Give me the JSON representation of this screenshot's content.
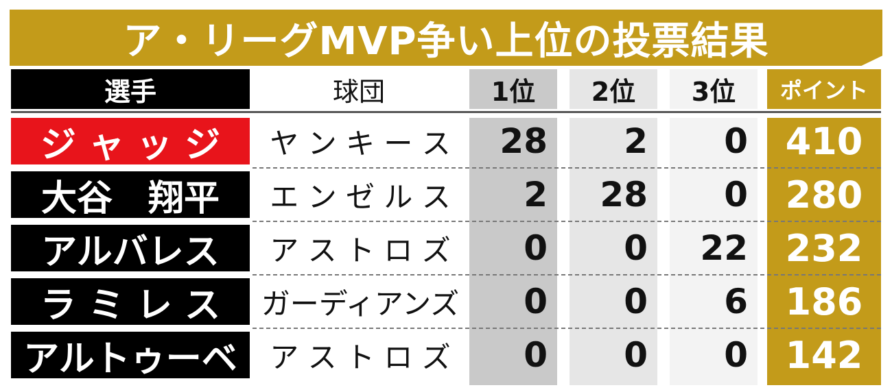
{
  "title": "ア・リーグMVP争い上位の投票結果",
  "colors": {
    "gold": "#c39b1a",
    "highlight": "#e8141b",
    "black": "#000000"
  },
  "chart_data": {
    "type": "table",
    "title": "ア・リーグMVP争い上位の投票結果",
    "columns": [
      "選手",
      "球団",
      "1位",
      "2位",
      "3位",
      "ポイント"
    ],
    "rows": [
      {
        "player": "ジ ャ ッ ジ",
        "team": "ヤ ン キ ー ス",
        "first": 28,
        "second": 2,
        "third": 0,
        "points": 410,
        "highlight": true
      },
      {
        "player": "大谷　翔平",
        "team": "エ ン ゼ ル ス",
        "first": 2,
        "second": 28,
        "third": 0,
        "points": 280,
        "highlight": false
      },
      {
        "player": "アルバレス",
        "team": "ア ス ト ロ ズ",
        "first": 0,
        "second": 0,
        "third": 22,
        "points": 232,
        "highlight": false
      },
      {
        "player": "ラ ミ レ ス",
        "team": "ガーディアンズ",
        "first": 0,
        "second": 0,
        "third": 6,
        "points": 186,
        "highlight": false
      },
      {
        "player": "アルトゥーベ",
        "team": "ア ス ト ロ ズ",
        "first": 0,
        "second": 0,
        "third": 0,
        "points": 142,
        "highlight": false
      }
    ]
  }
}
